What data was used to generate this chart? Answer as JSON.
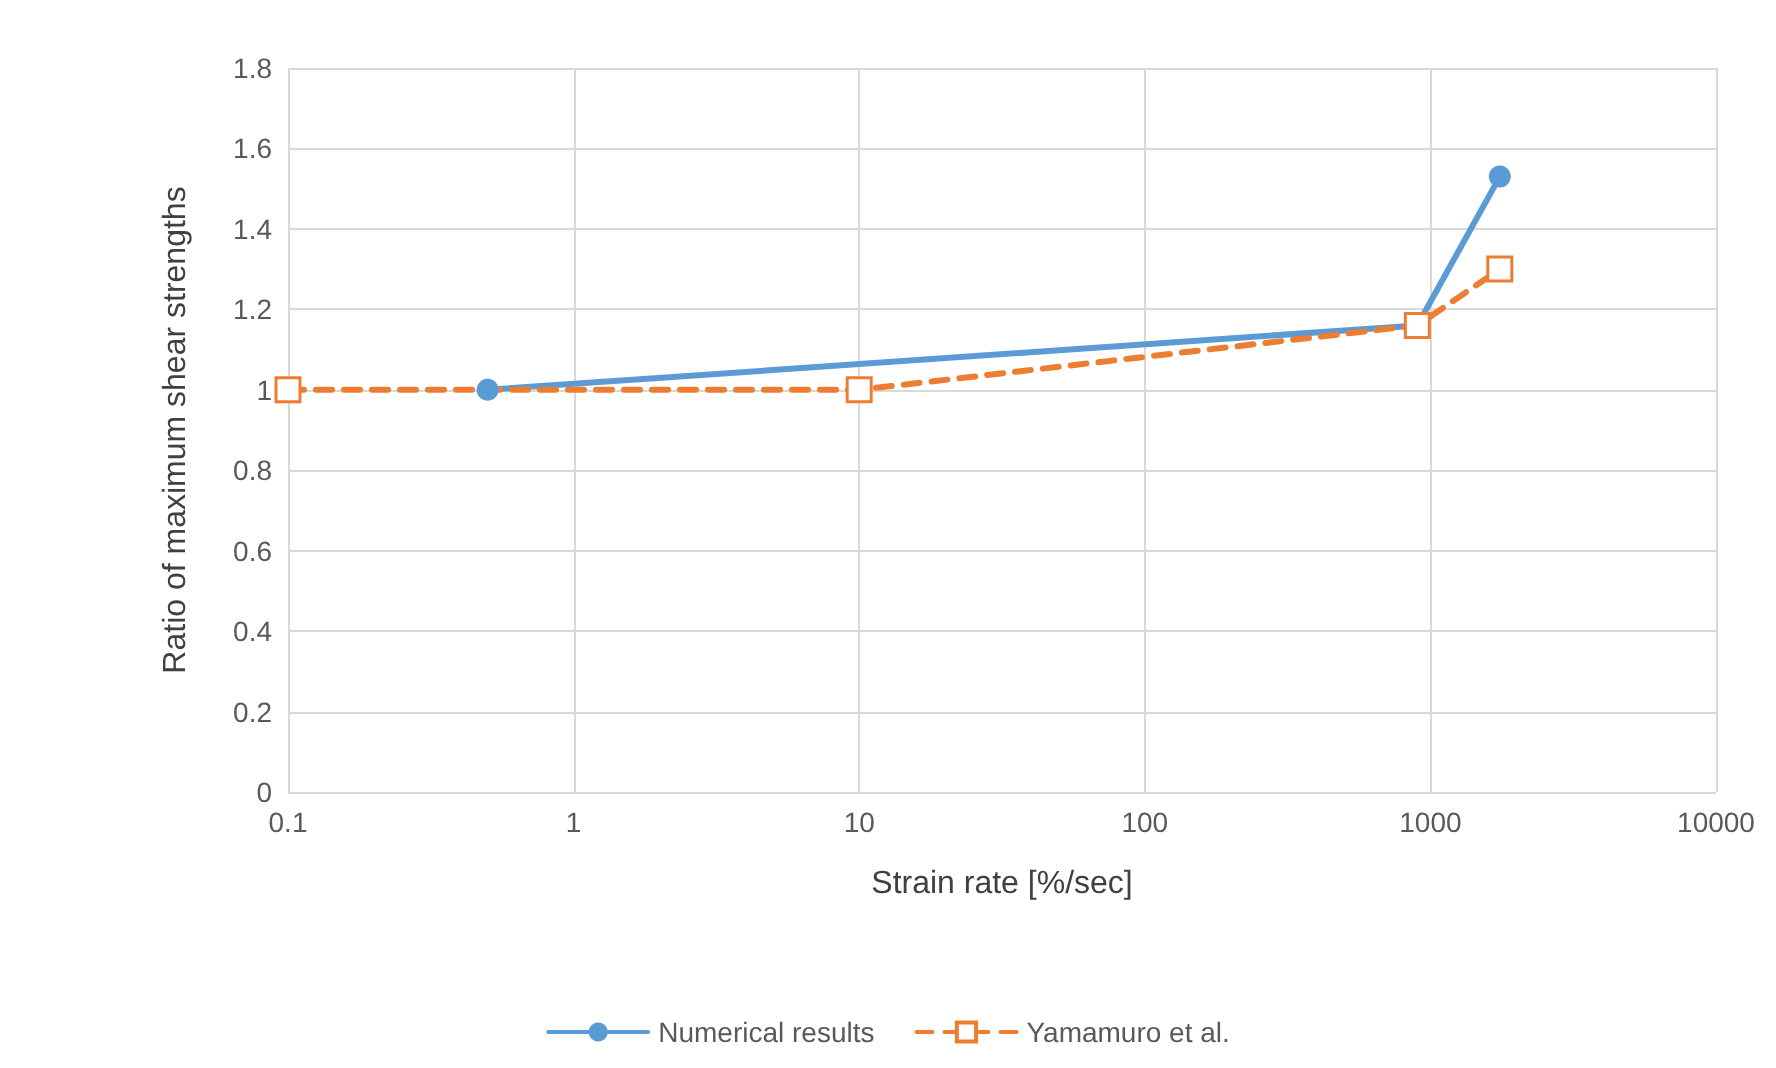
{
  "chart_data": {
    "type": "line",
    "xlabel": "Strain rate [%/sec]",
    "ylabel": "Ratio of maximum shear strengths",
    "log": "x",
    "xlim": [
      0.1,
      10000
    ],
    "xticks": [
      0.1,
      1,
      10,
      100,
      1000,
      10000
    ],
    "ylim": [
      0,
      1.8
    ],
    "yticks": [
      0,
      0.2,
      0.4,
      0.6,
      0.8,
      1,
      1.2,
      1.4,
      1.6,
      1.8
    ],
    "grid": true,
    "legend": "bottom",
    "series": [
      {
        "name": "Numerical results",
        "color": "#5b9bd5",
        "marker": "circle",
        "line_style": "solid",
        "x": [
          0.5,
          900,
          1750
        ],
        "values": [
          1.0,
          1.16,
          1.53
        ]
      },
      {
        "name": "Yamamuro et al.",
        "color": "#ed7d31",
        "marker": "square",
        "line_style": "dashed",
        "x": [
          0.1,
          10,
          900,
          1750
        ],
        "values": [
          1.0,
          1.0,
          1.16,
          1.3
        ]
      }
    ]
  }
}
